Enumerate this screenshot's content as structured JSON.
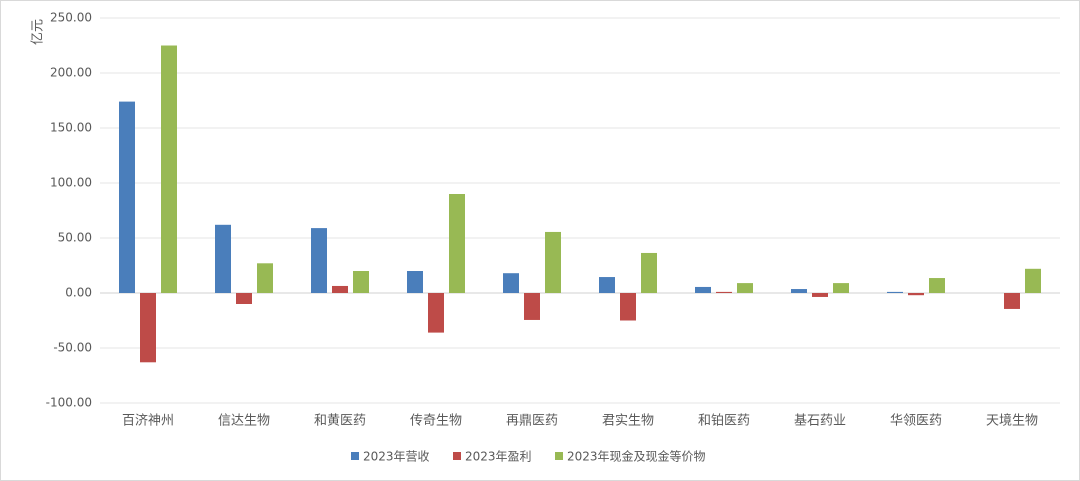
{
  "chart_data": {
    "type": "bar",
    "y_label": "亿元",
    "categories": [
      "百济神州",
      "信达生物",
      "和黄医药",
      "传奇生物",
      "再鼎医药",
      "君实生物",
      "和铂医药",
      "基石药业",
      "华领医药",
      "天境生物"
    ],
    "series": [
      {
        "name": "2023年营收",
        "color": "#4a7ebb",
        "values": [
          174,
          62,
          59,
          20,
          18,
          14.5,
          5.5,
          3.6,
          1,
          0
        ]
      },
      {
        "name": "2023年盈利",
        "color": "#be4b48",
        "values": [
          -63,
          -10,
          6.4,
          -36,
          -24.5,
          -25,
          1,
          -3.6,
          -2,
          -14.5
        ]
      },
      {
        "name": "2023年现金及现金等价物",
        "color": "#98b954",
        "values": [
          225,
          27,
          20,
          90,
          55.5,
          36.4,
          9,
          9,
          13.6,
          22
        ]
      }
    ],
    "ylim": [
      -100,
      250
    ],
    "yticks": [
      {
        "value": -100,
        "label": "-100.00"
      },
      {
        "value": -50,
        "label": "-50.00"
      },
      {
        "value": 0,
        "label": "0.00"
      },
      {
        "value": 50,
        "label": "50.00"
      },
      {
        "value": 100,
        "label": "100.00"
      },
      {
        "value": 150,
        "label": "150.00"
      },
      {
        "value": 200,
        "label": "200.00"
      },
      {
        "value": 250,
        "label": "250.00"
      }
    ],
    "grid": true
  }
}
